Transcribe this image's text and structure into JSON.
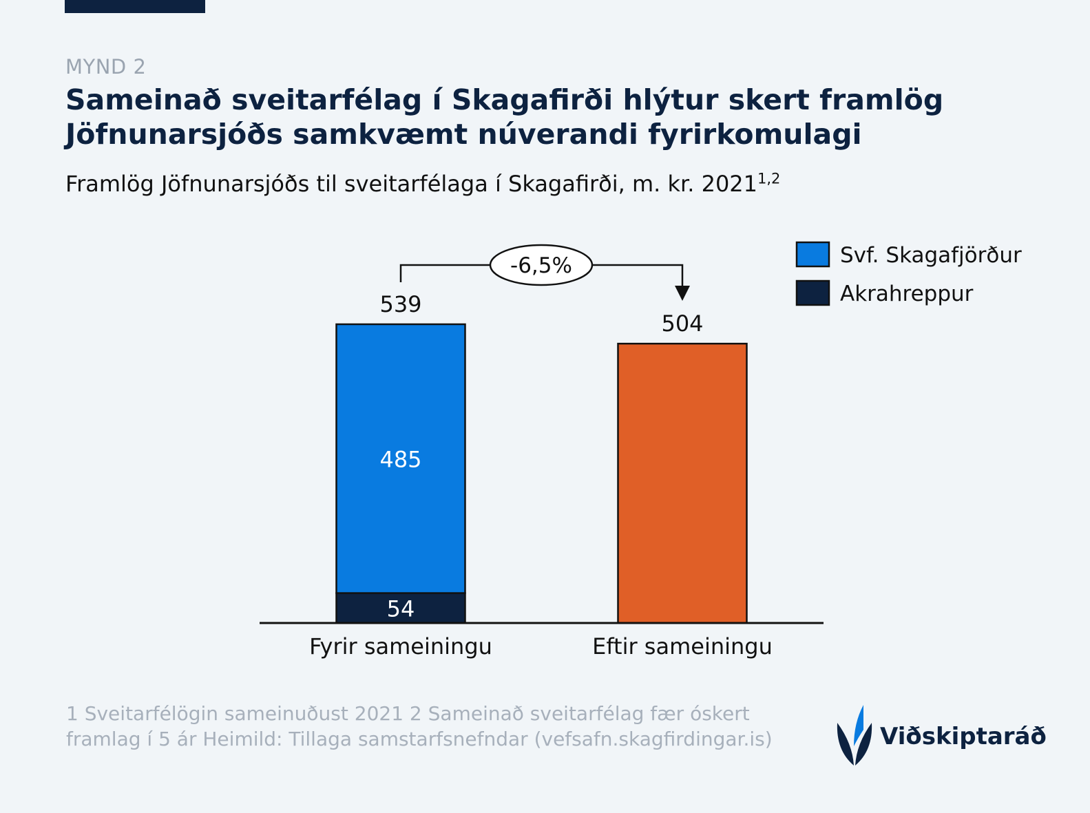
{
  "kicker": "MYND 2",
  "title": "Sameinað sveitarfélag í Skagafirði hlýtur skert framlög Jöfnunarsjóðs samkvæmt núverandi fyrirkomulagi",
  "subtitle": "Framlög Jöfnunarsjóðs til sveitarfélaga í Skagafirði, m. kr. 2021",
  "subtitle_sup": "1,2",
  "chart_data": {
    "type": "bar",
    "stacked": true,
    "categories": [
      "Fyrir sameiningu",
      "Eftir sameiningu"
    ],
    "totals": [
      539,
      504
    ],
    "total_labels": [
      "539",
      "504"
    ],
    "series": [
      {
        "name": "Akrahreppur",
        "values": [
          54,
          0
        ],
        "labels": [
          "54",
          ""
        ],
        "color": "#0d2240"
      },
      {
        "name": "Svf. Skagafjörður",
        "values": [
          485,
          0
        ],
        "labels": [
          "485",
          ""
        ],
        "color": "#097be0"
      },
      {
        "values": [
          0,
          504
        ],
        "labels": [
          "",
          ""
        ],
        "color": "#e05f27"
      }
    ],
    "legend": {
      "placement": "top-right",
      "items": [
        {
          "label": "Svf. Skagafjörður",
          "color": "#097be0"
        },
        {
          "label": "Akrahreppur",
          "color": "#0d2240"
        }
      ]
    },
    "annotation": {
      "text": "-6,5%",
      "from": "Fyrir sameiningu",
      "to": "Eftir sameiningu"
    },
    "ylim": [
      0,
      539
    ],
    "grid": false
  },
  "footnote": "1 Sveitarfélögin sameinuðust 2021 2 Sameinað sveitarfélag fær óskert framlag í 5 ár Heimild: Tillaga samstarfsnefndar (vefsafn.skagfirdingar.is)",
  "logo": {
    "name": "Viðskiptaráð",
    "icon": "wheat-leaf-logo-icon"
  }
}
